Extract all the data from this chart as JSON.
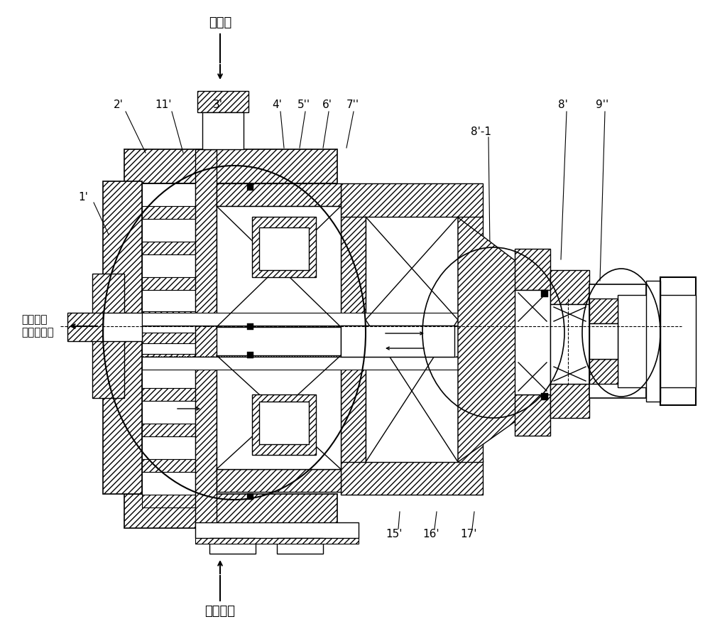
{
  "bg_color": "#ffffff",
  "line_color": "#000000",
  "labels": {
    "air_in": "空氣入",
    "oil_in": "潤滑油入",
    "oil_out_line1": "潤滑油及",
    "oil_out_line2": "壓縮空氣出",
    "part_2": "2'",
    "part_11": "11'",
    "part_3": "3'",
    "part_4": "4'",
    "part_5": "5''",
    "part_6": "6'",
    "part_7": "7''",
    "part_8": "8'",
    "part_8_1": "8'-1",
    "part_9": "9''",
    "part_1": "1'",
    "part_15": "15'",
    "part_16": "16'",
    "part_17": "17'"
  },
  "figsize": [
    10.0,
    8.92
  ],
  "dpi": 100
}
